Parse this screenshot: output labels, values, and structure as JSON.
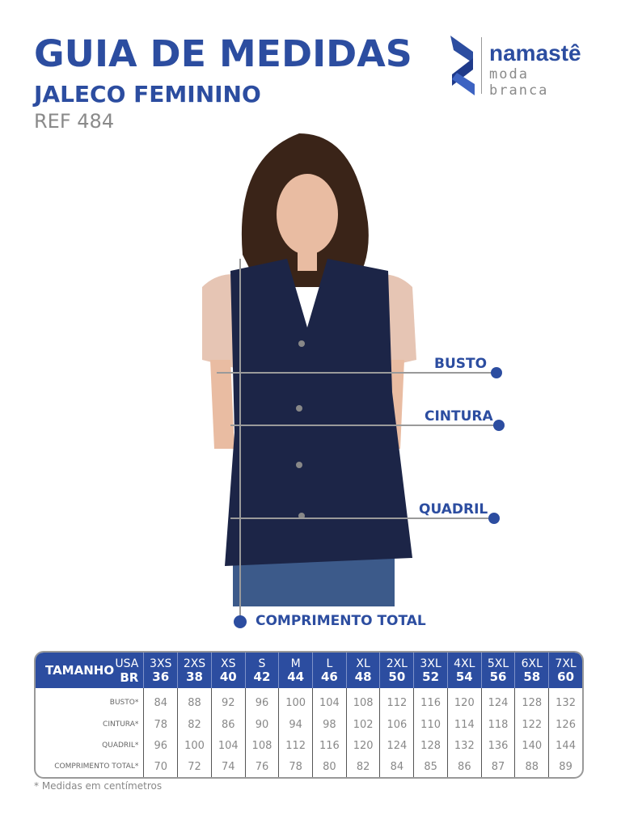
{
  "header": {
    "title": "GUIA DE MEDIDAS",
    "subtitle": "JALECO FEMININO",
    "ref": "REF 484"
  },
  "logo": {
    "brand": "namastê",
    "tagline": "moda branca"
  },
  "measures": {
    "busto": "BUSTO",
    "cintura": "CINTURA",
    "quadril": "QUADRIL",
    "comprimento": "COMPRIMENTO TOTAL"
  },
  "colors": {
    "accent": "#2c4da0",
    "vest": "#1c2547"
  },
  "table": {
    "header_label": "TAMANHO",
    "usa_label": "USA",
    "br_label": "BR",
    "sizes": [
      {
        "usa": "3XS",
        "br": "36"
      },
      {
        "usa": "2XS",
        "br": "38"
      },
      {
        "usa": "XS",
        "br": "40"
      },
      {
        "usa": "S",
        "br": "42"
      },
      {
        "usa": "M",
        "br": "44"
      },
      {
        "usa": "L",
        "br": "46"
      },
      {
        "usa": "XL",
        "br": "48"
      },
      {
        "usa": "2XL",
        "br": "50"
      },
      {
        "usa": "3XL",
        "br": "52"
      },
      {
        "usa": "4XL",
        "br": "54"
      },
      {
        "usa": "5XL",
        "br": "56"
      },
      {
        "usa": "6XL",
        "br": "58"
      },
      {
        "usa": "7XL",
        "br": "60"
      }
    ],
    "rows": [
      {
        "label": "BUSTO*",
        "values": [
          "84",
          "88",
          "92",
          "96",
          "100",
          "104",
          "108",
          "112",
          "116",
          "120",
          "124",
          "128",
          "132"
        ]
      },
      {
        "label": "CINTURA*",
        "values": [
          "78",
          "82",
          "86",
          "90",
          "94",
          "98",
          "102",
          "106",
          "110",
          "114",
          "118",
          "122",
          "126"
        ]
      },
      {
        "label": "QUADRIL*",
        "values": [
          "96",
          "100",
          "104",
          "108",
          "112",
          "116",
          "120",
          "124",
          "128",
          "132",
          "136",
          "140",
          "144"
        ]
      },
      {
        "label": "COMPRIMENTO TOTAL*",
        "values": [
          "70",
          "72",
          "74",
          "76",
          "78",
          "80",
          "82",
          "84",
          "85",
          "86",
          "87",
          "88",
          "89"
        ]
      }
    ]
  },
  "footnote": "* Medidas em centímetros"
}
